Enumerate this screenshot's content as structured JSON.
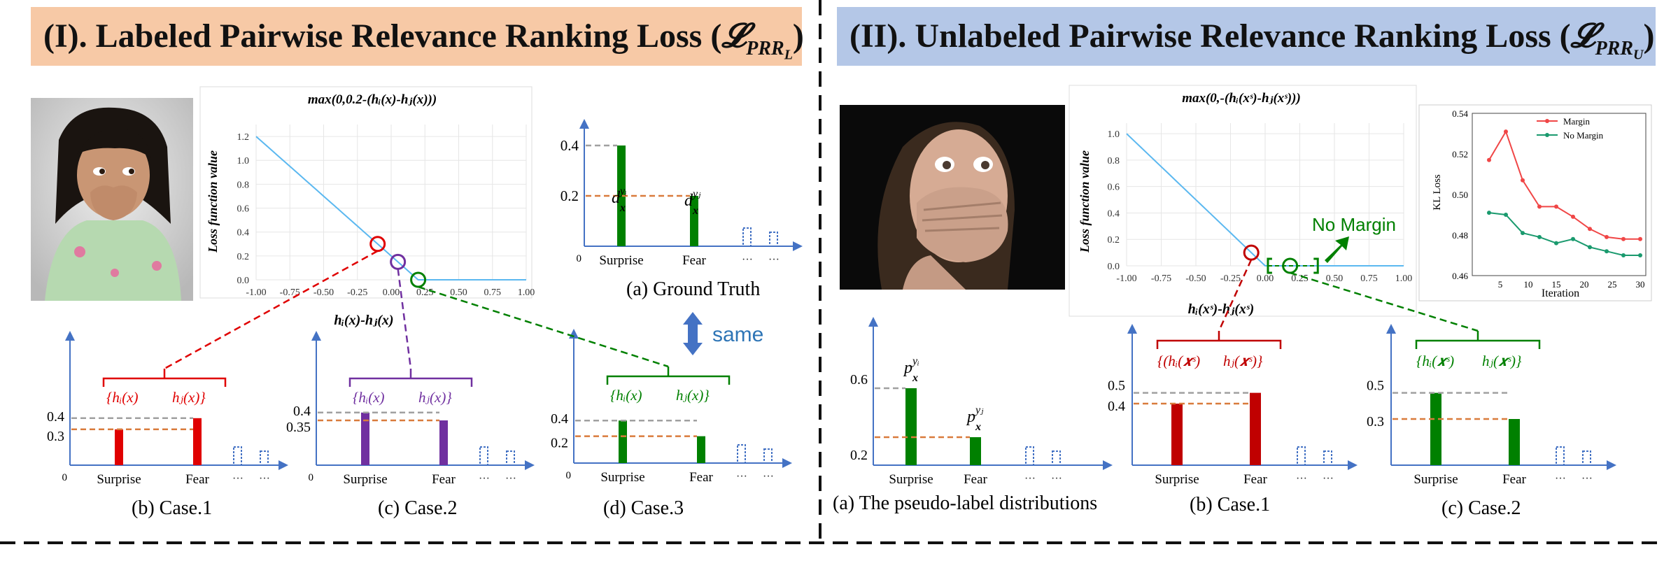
{
  "left_panel": {
    "title": "(I). Labeled Pairwise Relevance Ranking Loss (",
    "title_math": "𝓛",
    "title_sub": "PRR",
    "title_subsub": "L",
    "title_close": ")",
    "bg_color": "#f7c9a6",
    "photo_label": "girl-fear-photo",
    "loss_chart": {
      "title": "max(0,0.2-(hᵢ(x)-hⱼ(x)))",
      "ylabel": "Loss function value",
      "xlabel": "hᵢ(x)-hⱼ(x)",
      "x_ticks": [
        "-1.00",
        "-0.75",
        "-0.50",
        "-0.25",
        "0.00",
        "0.25",
        "0.50",
        "0.75",
        "1.00"
      ],
      "y_ticks": [
        "0.0",
        "0.2",
        "0.4",
        "0.6",
        "0.8",
        "1.0",
        "1.2"
      ]
    },
    "ground_truth": {
      "caption": "(a) Ground Truth",
      "categories": [
        "Surprise",
        "Fear"
      ],
      "values": [
        0.4,
        0.2
      ],
      "y_labels": [
        "0.4",
        "0.2"
      ],
      "origin": "0",
      "bar_label_1": "d",
      "bar_label_1_sup": "yᵢ",
      "bar_label_2": "d",
      "bar_label_2_sup": "yⱼ",
      "bar_label_sub": "x",
      "ellipsis": "···"
    },
    "same_label": "same",
    "cases": [
      {
        "caption": "(b) Case.1",
        "y_labels": [
          "0.4",
          "0.3"
        ],
        "color": "#e00000",
        "brace_text_1": "{hᵢ(x)",
        "brace_text_2": "hⱼ(x)}"
      },
      {
        "caption": "(c) Case.2",
        "y_labels": [
          "0.4",
          "0.35"
        ],
        "color": "#7030a0",
        "brace_text_1": "{hᵢ(x)",
        "brace_text_2": "hⱼ(x)}"
      },
      {
        "caption": "(d) Case.3",
        "y_labels": [
          "0.4",
          "0.2"
        ],
        "color": "#008000",
        "brace_text_1": "{hᵢ(x)",
        "brace_text_2": "hⱼ(x)}"
      }
    ],
    "categories": [
      "Surprise",
      "Fear"
    ]
  },
  "right_panel": {
    "title": "(II). Unlabeled Pairwise Relevance Ranking Loss (",
    "title_math": "𝓛",
    "title_sub": "PRR",
    "title_subsub": "U",
    "title_close": ")",
    "bg_color": "#b4c7e7",
    "photo_label": "woman-fear-photo",
    "loss_chart": {
      "title": "max(0,-(hᵢ(xˢ)-hⱼ(xˢ)))",
      "ylabel": "Loss function value",
      "xlabel": "hᵢ(xˢ)-hⱼ(xˢ)",
      "x_ticks": [
        "-1.00",
        "-0.75",
        "-0.50",
        "-0.25",
        "0.00",
        "0.25",
        "0.50",
        "0.75",
        "1.00"
      ],
      "y_ticks": [
        "0.0",
        "0.2",
        "0.4",
        "0.6",
        "0.8",
        "1.0"
      ],
      "annotation": "No Margin"
    },
    "kl_chart": {
      "type": "line",
      "ylabel": "KL Loss",
      "xlabel": "Iteration",
      "x_ticks": [
        "5",
        "10",
        "15",
        "20",
        "25",
        "30"
      ],
      "y_ticks": [
        "0.46",
        "0.48",
        "0.50",
        "0.52",
        "0.54"
      ],
      "ylim": [
        0.46,
        0.54
      ],
      "xlim": [
        0,
        31
      ],
      "series": [
        {
          "name": "Margin",
          "color": "#f04646",
          "x": [
            3,
            6,
            9,
            12,
            15,
            18,
            21,
            24,
            27,
            30
          ],
          "y": [
            0.517,
            0.531,
            0.507,
            0.494,
            0.494,
            0.489,
            0.483,
            0.479,
            0.478,
            0.478
          ]
        },
        {
          "name": "No Margin",
          "color": "#1a9a6e",
          "x": [
            3,
            6,
            9,
            12,
            15,
            18,
            21,
            24,
            27,
            30
          ],
          "y": [
            0.491,
            0.49,
            0.481,
            0.479,
            0.476,
            0.478,
            0.474,
            0.472,
            0.47,
            0.47
          ]
        }
      ]
    },
    "pseudo": {
      "caption": "(a) The pseudo-label distributions",
      "categories": [
        "Surprise",
        "Fear"
      ],
      "y_labels": [
        "0.6",
        "0.2"
      ],
      "bar_label_1": "p",
      "bar_label_1_sup": "yᵢ",
      "bar_label_2": "p",
      "bar_label_2_sup": "yⱼ",
      "bar_label_sub": "x",
      "color": "#008000"
    },
    "cases": [
      {
        "caption": "(b) Case.1",
        "y_labels": [
          "0.5",
          "0.4"
        ],
        "color": "#c00000",
        "brace_text_1": "{(hᵢ(𝒙ˢ)",
        "brace_text_2": "hⱼ(𝒙ˢ)}"
      },
      {
        "caption": "(c) Case.2",
        "y_labels": [
          "0.5",
          "0.3"
        ],
        "color": "#008000",
        "brace_text_1": "{hᵢ(𝒙ˢ)",
        "brace_text_2": "hⱼ(𝒙ˢ)}"
      }
    ],
    "categories": [
      "Surprise",
      "Fear"
    ]
  },
  "common": {
    "origin": "0",
    "ellipsis": "···"
  }
}
